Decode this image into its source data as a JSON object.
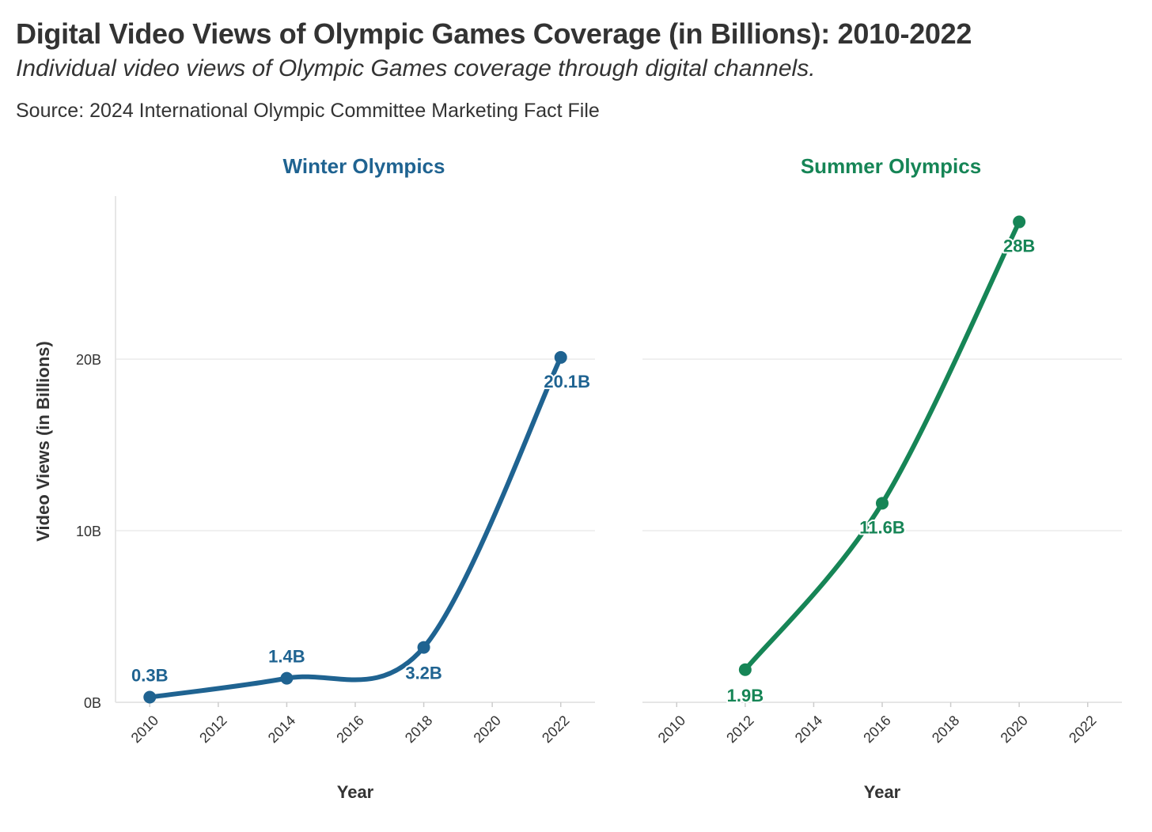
{
  "header": {
    "title": "Digital Video Views of Olympic Games Coverage (in Billions): 2010-2022",
    "subtitle": "Individual video views of Olympic Games coverage through digital channels.",
    "source": "Source: 2024 International Olympic Committee Marketing Fact File"
  },
  "chart_data": [
    {
      "type": "line",
      "facet_title": "Winter Olympics",
      "color": "#1f6391",
      "xlabel": "Year",
      "ylabel": "Video Views (in Billions)",
      "x_ticks": [
        "2010",
        "2012",
        "2014",
        "2016",
        "2018",
        "2020",
        "2022"
      ],
      "y_ticks": [
        "0B",
        "10B",
        "20B"
      ],
      "xlim": [
        2009,
        2023
      ],
      "ylim": [
        0,
        29.5
      ],
      "grid": true,
      "series": [
        {
          "x": [
            2010,
            2014,
            2018,
            2022
          ],
          "values": [
            0.3,
            1.4,
            3.2,
            20.1
          ],
          "labels": [
            "0.3B",
            "1.4B",
            "3.2B",
            "20.1B"
          ]
        }
      ]
    },
    {
      "type": "line",
      "facet_title": "Summer Olympics",
      "color": "#168556",
      "xlabel": "Year",
      "x_ticks": [
        "2010",
        "2012",
        "2014",
        "2016",
        "2018",
        "2020",
        "2022"
      ],
      "xlim": [
        2009,
        2023
      ],
      "ylim": [
        0,
        29.5
      ],
      "grid": true,
      "series": [
        {
          "x": [
            2012,
            2016,
            2020
          ],
          "values": [
            1.9,
            11.6,
            28
          ],
          "labels": [
            "1.9B",
            "11.6B",
            "28B"
          ]
        }
      ]
    }
  ]
}
